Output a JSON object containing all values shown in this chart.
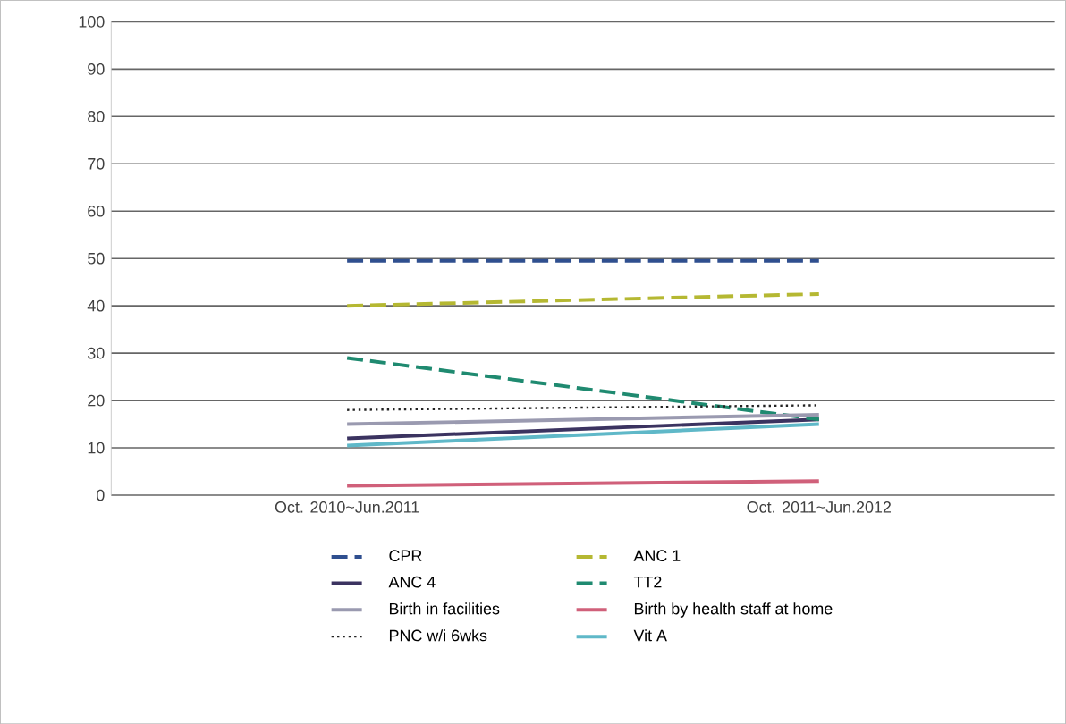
{
  "chart_data": {
    "type": "line",
    "categories": [
      "Oct. 2010~Jun.2011",
      "Oct. 2011~Jun.2012"
    ],
    "ylim": [
      0,
      100
    ],
    "yticks": [
      0,
      10,
      20,
      30,
      40,
      50,
      60,
      70,
      80,
      90,
      100
    ],
    "grid": "y",
    "legend": "bottom",
    "marker": "none",
    "series": [
      {
        "name": "CPR",
        "color": "#2f4f8f",
        "values": [
          49.5,
          49.5
        ],
        "line_style": "dashed"
      },
      {
        "name": "ANC 1",
        "color": "#b5b832",
        "values": [
          40,
          42.5
        ],
        "line_style": "dashed"
      },
      {
        "name": "ANC 4",
        "color": "#3b3360",
        "values": [
          12,
          16
        ],
        "line_style": "solid"
      },
      {
        "name": "TT2",
        "color": "#1f8a70",
        "values": [
          29,
          16
        ],
        "line_style": "dashed"
      },
      {
        "name": "Birth in facilities",
        "color": "#9a9ab0",
        "values": [
          15,
          17
        ],
        "line_style": "solid"
      },
      {
        "name": "Birth by health staff at home",
        "color": "#d0607a",
        "values": [
          2,
          3
        ],
        "line_style": "solid"
      },
      {
        "name": "PNC w/i 6wks",
        "color": "#222222",
        "values": [
          18,
          19
        ],
        "line_style": "dotted"
      },
      {
        "name": "Vit A",
        "color": "#5fb8c8",
        "values": [
          10.5,
          15
        ],
        "line_style": "solid"
      }
    ]
  }
}
